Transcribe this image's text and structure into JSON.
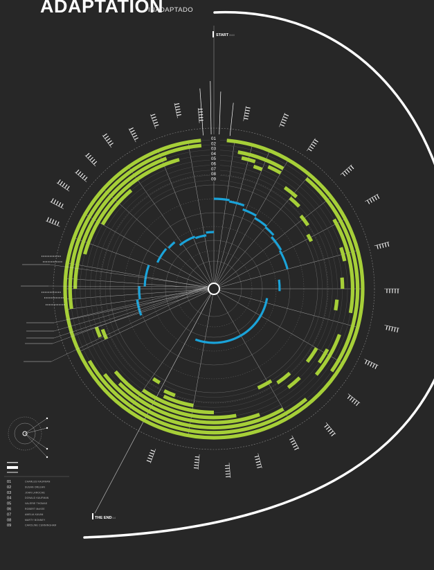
{
  "header": {
    "title": "ADAPTATION",
    "subtitle": "INADAPTADO"
  },
  "markers": {
    "start": "START",
    "end": "THE END"
  },
  "ordinals": [
    "01",
    "02",
    "03",
    "04",
    "05",
    "06",
    "07",
    "08",
    "09"
  ],
  "legend": {
    "items": [
      {
        "num": "01",
        "name": "CHARLES KAUFMAN"
      },
      {
        "num": "02",
        "name": "SUSAN ORLEAN"
      },
      {
        "num": "03",
        "name": "JOHN LAROCHE"
      },
      {
        "num": "04",
        "name": "DONALD KAUFMAN"
      },
      {
        "num": "05",
        "name": "VALERIE THOMAS"
      },
      {
        "num": "06",
        "name": "ROBERT McKEE"
      },
      {
        "num": "07",
        "name": "AMELIA KAVAN"
      },
      {
        "num": "08",
        "name": "MARTY BONNEY"
      },
      {
        "num": "09",
        "name": "CAROLINE CUNNINGHAM"
      }
    ]
  },
  "colors": {
    "background": "#272727",
    "green": "#a6cf38",
    "blue": "#1aa3d9",
    "white": "#ffffff"
  }
}
